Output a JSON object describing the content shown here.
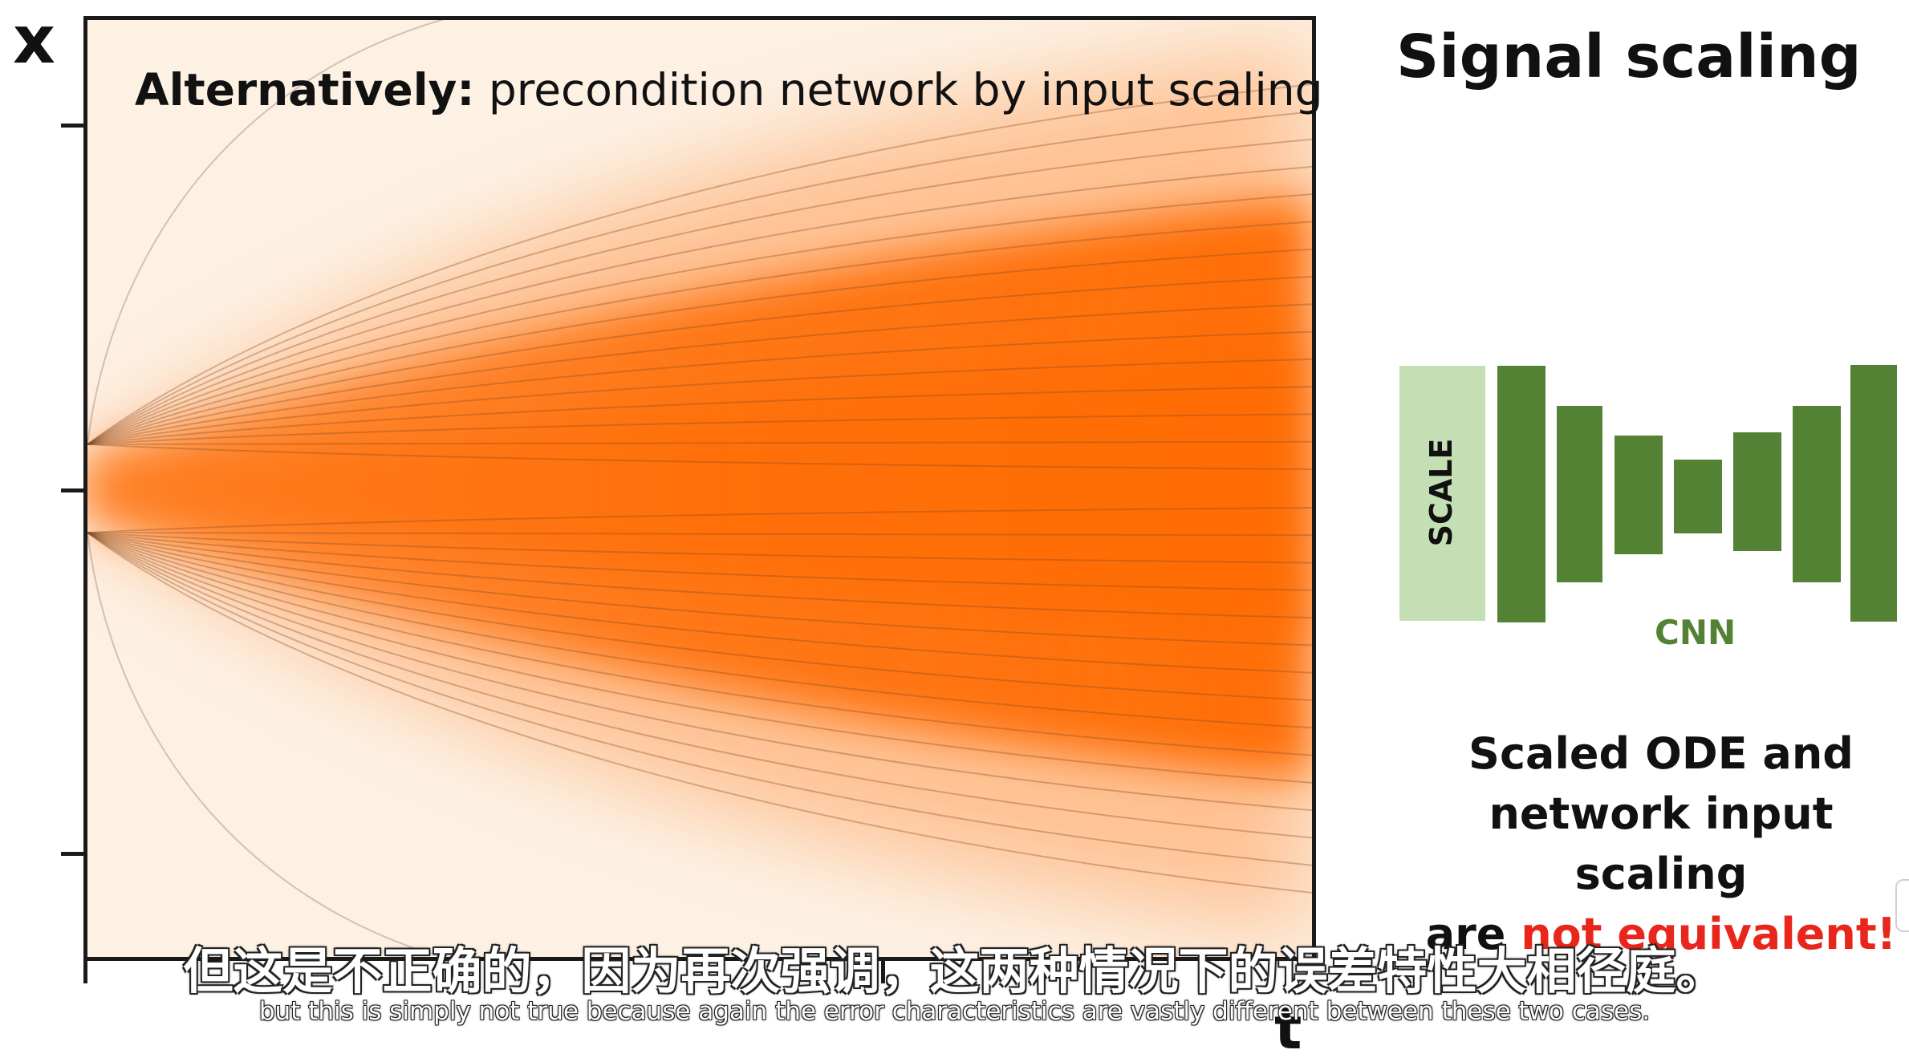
{
  "axes": {
    "y_label": "x",
    "x_label": "t"
  },
  "caption": {
    "bold": "Alternatively:",
    "rest": " precondition network by input scaling"
  },
  "section_title": "Signal scaling",
  "diagram": {
    "scale_label": "SCALE",
    "network_label": "CNN"
  },
  "conclusion": {
    "line1": "Scaled ODE and",
    "line2": "network input scaling",
    "line3_prefix": "are ",
    "line3_highlight": "not equivalent!"
  },
  "subtitles": {
    "chinese": "但这是不正确的，因为再次强调，这两种情况下的误差特性大相径庭。",
    "english": "but this is simply not true because again the error characteristics are vastly different between these two cases."
  },
  "colors": {
    "fill_orange": "#ff6a00",
    "background_cream": "#fdf1e4",
    "cnn_green": "#548235",
    "scale_green": "#c5dfb4",
    "highlight_red": "#e8261b"
  }
}
